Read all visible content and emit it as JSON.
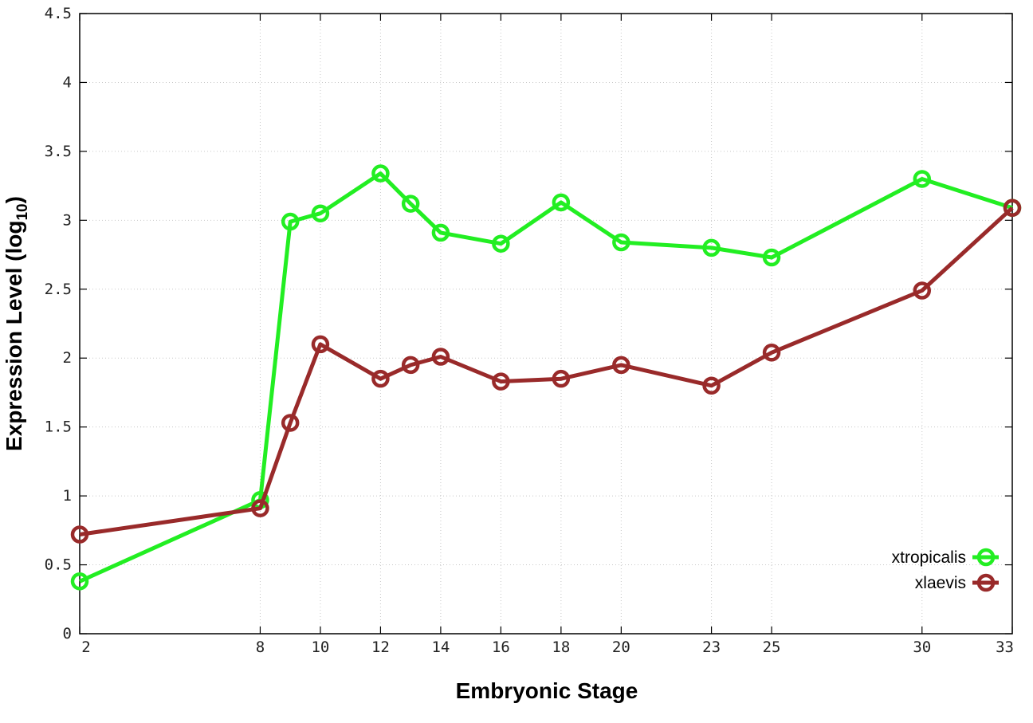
{
  "chart_data": {
    "type": "line",
    "x_categories": [
      "2",
      "8",
      "9",
      "10",
      "12",
      "13",
      "14",
      "16",
      "18",
      "20",
      "23",
      "25",
      "30",
      "33"
    ],
    "x_tick_labels": [
      "2",
      "8",
      "10",
      "12",
      "14",
      "16",
      "18",
      "20",
      "23",
      "25",
      "30",
      "33"
    ],
    "y_tick_labels": [
      "0",
      "0.5",
      "1",
      "1.5",
      "2",
      "2.5",
      "3",
      "3.5",
      "4",
      "4.5"
    ],
    "ylim": [
      0,
      4.5
    ],
    "xlabel": "Embryonic Stage",
    "ylabel_main": "Expression Level (log",
    "ylabel_sub": "10",
    "ylabel_close": ")",
    "grid": true,
    "legend_position": "bottom-right",
    "series": [
      {
        "name": "xtropicalis",
        "color": "#22ee22",
        "values": [
          0.38,
          0.97,
          2.99,
          3.05,
          3.34,
          3.12,
          2.91,
          2.83,
          3.13,
          2.84,
          2.8,
          2.73,
          3.3,
          3.09
        ]
      },
      {
        "name": "xlaevis",
        "color": "#992a2a",
        "values": [
          0.72,
          0.91,
          1.53,
          2.1,
          1.85,
          1.95,
          2.01,
          1.83,
          1.85,
          1.95,
          1.8,
          2.04,
          2.49,
          3.09
        ]
      }
    ]
  }
}
